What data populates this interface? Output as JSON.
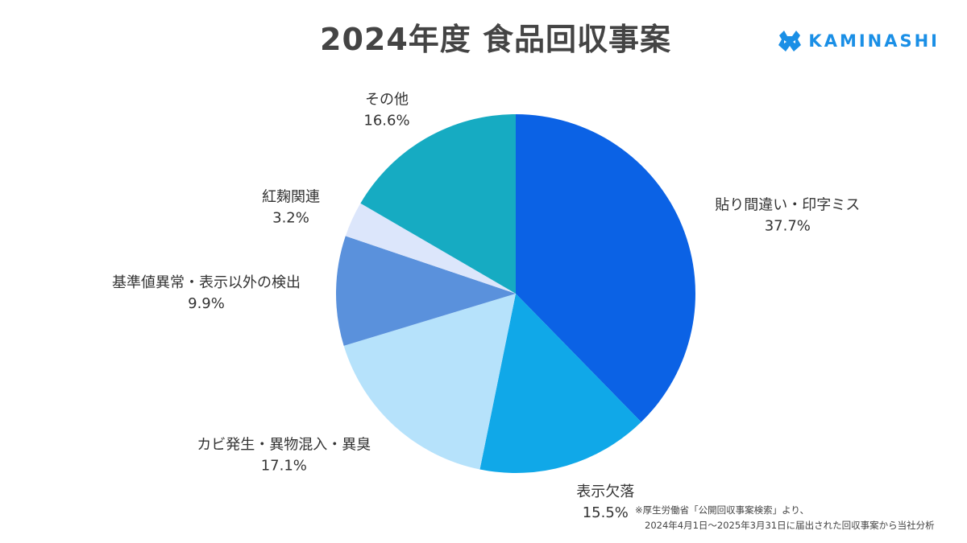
{
  "header": {
    "title": "2024年度 食品回収事案",
    "brand": "KAMINASHI"
  },
  "colors": {
    "brand": "#1a8fe6"
  },
  "chart_data": {
    "type": "pie",
    "title": "2024年度 食品回収事案",
    "unit": "%",
    "slices": [
      {
        "label": "貼り間違い・印字ミス",
        "value": 37.7,
        "display": "37.7%",
        "color": "#0b62e5"
      },
      {
        "label": "表示欠落",
        "value": 15.5,
        "display": "15.5%",
        "color": "#10a8e8"
      },
      {
        "label": "カビ発生・異物混入・異臭",
        "value": 17.1,
        "display": "17.1%",
        "color": "#b6e2fb"
      },
      {
        "label": "基準値異常・表示以外の検出",
        "value": 9.9,
        "display": "9.9%",
        "color": "#5a91dc"
      },
      {
        "label": "紅麹関連",
        "value": 3.2,
        "display": "3.2%",
        "color": "#dce6fb"
      },
      {
        "label": "その他",
        "value": 16.6,
        "display": "16.6%",
        "color": "#16abc2"
      }
    ]
  },
  "footnote": {
    "line1": "※厚生労働省「公開回収事案検索」より、",
    "line2": "2024年4月1日〜2025年3月31日に届出された回収事案から当社分析"
  }
}
